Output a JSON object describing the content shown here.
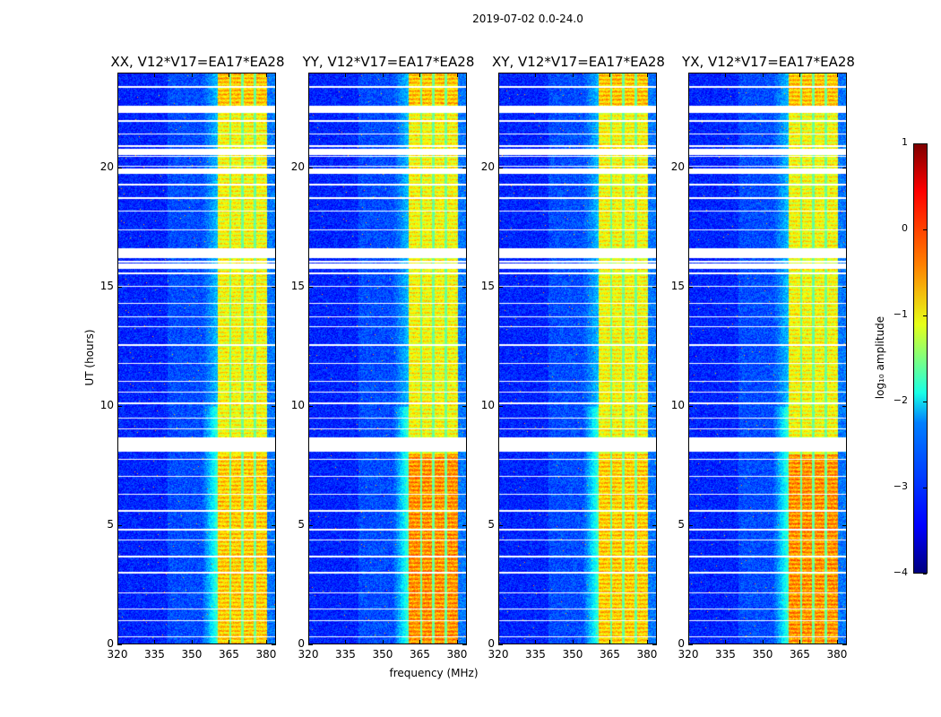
{
  "chart_data": {
    "type": "heatmap",
    "title": "2019-07-02 0.0-24.0",
    "xlabel": "frequency (MHz)",
    "ylabel": "UT (hours)",
    "xlim": [
      320,
      384
    ],
    "ylim": [
      0,
      24
    ],
    "xticks": [
      320,
      335,
      350,
      365,
      380
    ],
    "yticks": [
      0,
      5,
      10,
      15,
      20
    ],
    "band_MHz": [
      360.5,
      380.5
    ],
    "band_dividers_MHz": [
      365.5,
      370.6,
      375.7
    ],
    "flagged_gaps_hours": [
      [
        8.1,
        8.7
      ],
      [
        15.8,
        16.0
      ],
      [
        16.25,
        16.6
      ],
      [
        19.8,
        20.0
      ],
      [
        20.6,
        20.85
      ],
      [
        22.35,
        22.6
      ]
    ],
    "panels": [
      {
        "title": "XX, V12*V17=EA17*EA28"
      },
      {
        "title": "YY, V12*V17=EA17*EA28"
      },
      {
        "title": "XY, V12*V17=EA17*EA28"
      },
      {
        "title": "YX, V12*V17=EA17*EA28"
      }
    ],
    "colorbar": {
      "label": "log₁₀ amplitude",
      "min": -4,
      "max": 1,
      "ticks": [
        "1",
        "0",
        "−1",
        "−2",
        "−3",
        "−4"
      ],
      "colormap": "jet"
    }
  }
}
